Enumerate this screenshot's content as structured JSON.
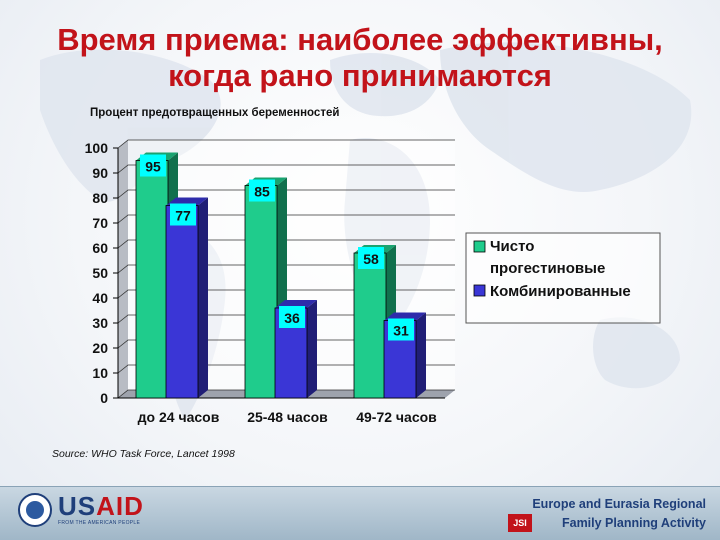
{
  "slide": {
    "title_line1": "Время приема: наиболее эффективны,",
    "title_line2": "когда рано принимаются",
    "subtitle": "Процент предотвращенных беременностей",
    "source": "Source: WHO Task Force, Lancet 1998"
  },
  "footer": {
    "usaid_us": "US",
    "usaid_aid": "AID",
    "usaid_tagline": "FROM THE AMERICAN PEOPLE",
    "region_line1": "Europe and Eurasia Regional",
    "region_line2": "Family Planning Activity",
    "jsi_label": "JSI"
  },
  "colors": {
    "title": "#c2131a",
    "series_green": "#1fcc8c",
    "series_blue": "#3a36d6",
    "label_box": "#00ffff"
  },
  "chart_data": {
    "type": "bar",
    "categories": [
      "до 24 часов",
      "25-48 часов",
      "49-72 часов"
    ],
    "series": [
      {
        "name": "Чисто прогестиновые",
        "values": [
          95,
          85,
          58
        ],
        "color": "#1fcc8c"
      },
      {
        "name": "Комбинированные",
        "values": [
          77,
          36,
          31
        ],
        "color": "#3a36d6"
      }
    ],
    "ylim": [
      0,
      100
    ],
    "yticks": [
      0,
      10,
      20,
      30,
      40,
      50,
      60,
      70,
      80,
      90,
      100
    ],
    "ylabel": "Процент предотвращенных беременностей",
    "xlabel": "",
    "legend": "right",
    "grid": true
  }
}
